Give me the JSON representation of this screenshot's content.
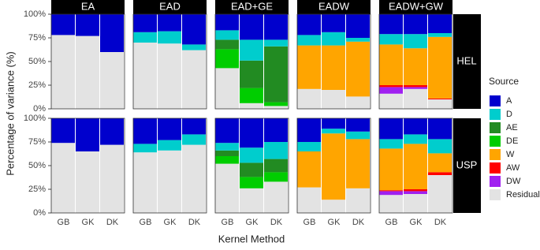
{
  "chart_data": {
    "type": "bar",
    "stacked": true,
    "y_label": "Percentage of variance (%)",
    "x_label": "Kernel Method",
    "legend_title": "Source",
    "columns": [
      "EA",
      "EAD",
      "EAD+GE",
      "EADW",
      "EADW+GW"
    ],
    "rows": [
      "HEL",
      "USP"
    ],
    "categories": [
      "GB",
      "GK",
      "DK"
    ],
    "ylim": [
      0,
      100
    ],
    "yticks": [
      {
        "value": 0,
        "label": "0%"
      },
      {
        "value": 25,
        "label": "25%"
      },
      {
        "value": 50,
        "label": "50%"
      },
      {
        "value": 75,
        "label": "75%"
      },
      {
        "value": 100,
        "label": "100%"
      }
    ],
    "series": [
      {
        "name": "A",
        "color": "#0000CD",
        "values": [
          [
            [
              22,
              23,
              40
            ],
            [
              19,
              18,
              32
            ],
            [
              17,
              27,
              27
            ],
            [
              22,
              19,
              25
            ],
            [
              21,
              21,
              20
            ]
          ],
          [
            [
              26,
              35,
              28
            ],
            [
              27,
              23,
              17
            ],
            [
              26,
              31,
              25
            ],
            [
              25,
              11,
              14
            ],
            [
              22,
              17,
              22
            ]
          ]
        ]
      },
      {
        "name": "D",
        "color": "#00CDCD",
        "values": [
          [
            [
              0,
              0,
              0
            ],
            [
              11,
              13,
              6
            ],
            [
              10,
              22,
              7
            ],
            [
              11,
              14,
              4
            ],
            [
              11,
              15,
              4
            ]
          ],
          [
            [
              0,
              0,
              0
            ],
            [
              9,
              11,
              11
            ],
            [
              8,
              16,
              18
            ],
            [
              10,
              5,
              8
            ],
            [
              10,
              10,
              15
            ]
          ]
        ]
      },
      {
        "name": "AE",
        "color": "#228B22",
        "values": [
          [
            [
              0,
              0,
              0
            ],
            [
              0,
              0,
              0
            ],
            [
              10,
              29,
              59
            ],
            [
              0,
              0,
              0
            ],
            [
              0,
              0,
              0
            ]
          ],
          [
            [
              0,
              0,
              0
            ],
            [
              0,
              0,
              0
            ],
            [
              6,
              15,
              14
            ],
            [
              0,
              0,
              0
            ],
            [
              0,
              0,
              0
            ]
          ]
        ]
      },
      {
        "name": "DE",
        "color": "#00CD00",
        "values": [
          [
            [
              0,
              0,
              0
            ],
            [
              0,
              0,
              0
            ],
            [
              20,
              16,
              4
            ],
            [
              0,
              0,
              0
            ],
            [
              0,
              0,
              0
            ]
          ],
          [
            [
              0,
              0,
              0
            ],
            [
              0,
              0,
              0
            ],
            [
              8,
              12,
              10
            ],
            [
              0,
              0,
              0
            ],
            [
              0,
              0,
              0
            ]
          ]
        ]
      },
      {
        "name": "W",
        "color": "#FFA500",
        "values": [
          [
            [
              0,
              0,
              0
            ],
            [
              0,
              0,
              0
            ],
            [
              0,
              0,
              0
            ],
            [
              46,
              47,
              58
            ],
            [
              43,
              39,
              65
            ]
          ],
          [
            [
              0,
              0,
              0
            ],
            [
              0,
              0,
              0
            ],
            [
              0,
              0,
              0
            ],
            [
              38,
              70,
              52
            ],
            [
              44,
              48,
              20
            ]
          ]
        ]
      },
      {
        "name": "AW",
        "color": "#FF0000",
        "values": [
          [
            [
              0,
              0,
              0
            ],
            [
              0,
              0,
              0
            ],
            [
              0,
              0,
              0
            ],
            [
              0,
              0,
              0
            ],
            [
              2,
              2,
              1
            ]
          ],
          [
            [
              0,
              0,
              0
            ],
            [
              0,
              0,
              0
            ],
            [
              0,
              0,
              0
            ],
            [
              0,
              0,
              0
            ],
            [
              1,
              2,
              3
            ]
          ]
        ]
      },
      {
        "name": "DW",
        "color": "#A020F0",
        "values": [
          [
            [
              0,
              0,
              0
            ],
            [
              0,
              0,
              0
            ],
            [
              0,
              0,
              0
            ],
            [
              0,
              0,
              0
            ],
            [
              7,
              2,
              0
            ]
          ],
          [
            [
              0,
              0,
              0
            ],
            [
              0,
              0,
              0
            ],
            [
              0,
              0,
              0
            ],
            [
              0,
              0,
              0
            ],
            [
              4,
              3,
              0
            ]
          ]
        ]
      },
      {
        "name": "Residual",
        "color": "#E3E3E3",
        "values": [
          [
            [
              78,
              77,
              60
            ],
            [
              70,
              69,
              62
            ],
            [
              43,
              6,
              3
            ],
            [
              21,
              20,
              13
            ],
            [
              16,
              21,
              10
            ]
          ],
          [
            [
              74,
              65,
              72
            ],
            [
              64,
              66,
              72
            ],
            [
              52,
              26,
              33
            ],
            [
              27,
              14,
              26
            ],
            [
              19,
              20,
              40
            ]
          ]
        ]
      }
    ]
  }
}
